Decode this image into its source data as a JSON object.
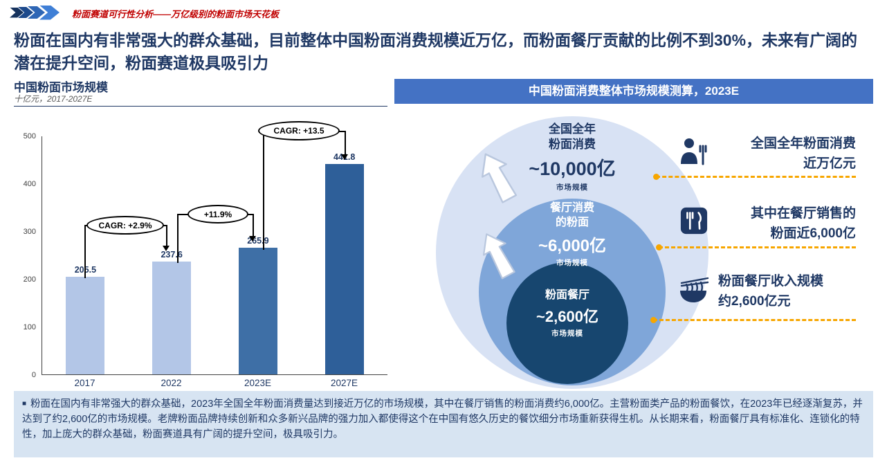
{
  "header": {
    "kicker": "粉面赛道可行性分析——万亿级别的粉面市场天花板"
  },
  "headline": {
    "line1": "粉面在国内有非常强大的群众基础，目前整体中国粉面消费规模近万亿，而粉面餐厅贡献的比例不到",
    "line2": "30%，未来有广阔的潜在提升空间，粉面赛道极具吸引力"
  },
  "left_chart": {
    "title": "中国粉面市场规模",
    "subtitle": "十亿元，2017-2027E"
  },
  "chart_data": {
    "type": "bar",
    "title": "中国粉面市场规模",
    "unit": "十亿元",
    "x_range_label": "2017-2027E",
    "categories": [
      "2017",
      "2022",
      "2023E",
      "2027E"
    ],
    "values": [
      205.5,
      237.6,
      265.9,
      441.8
    ],
    "bar_colors": [
      "#B3C6E7",
      "#B3C6E7",
      "#3E6FA6",
      "#2E5F99"
    ],
    "ylim": [
      0,
      500
    ],
    "yticks": [
      0,
      100,
      200,
      300,
      400,
      500
    ],
    "annotations": [
      {
        "label": "CAGR: +2.9%",
        "from": "2017",
        "to": "2022"
      },
      {
        "label": "+11.9%",
        "from": "2022",
        "to": "2023E"
      },
      {
        "label": "CAGR: +13.5",
        "from": "2023E",
        "to": "2027E"
      }
    ]
  },
  "panel": {
    "title": "中国粉面消费整体市场规模测算，2023E",
    "circles": [
      {
        "line1": "全国全年",
        "line2": "粉面消费",
        "value": "~10,000亿",
        "caption": "市场规模"
      },
      {
        "line1": "餐厅消费",
        "line2": "的粉面",
        "value": "~6,000亿",
        "caption": "市场规模"
      },
      {
        "line1": "粉面餐厅",
        "value": "~2,600亿",
        "caption": "市场规模"
      }
    ],
    "legend": [
      {
        "icon": "diner-person-icon",
        "line1": "全国全年粉面消费",
        "line2": "近万亿元"
      },
      {
        "icon": "fork-knife-icon",
        "line1": "其中在餐厅销售的",
        "line2": "粉面近6,000亿"
      },
      {
        "icon": "noodle-bowl-icon",
        "line1": "粉面餐厅收入规模",
        "line2": "约2,600亿元"
      }
    ]
  },
  "footnote": "粉面在国内有非常强大的群众基础，2023年全国全年粉面消费量达到接近万亿的市场规模，其中在餐厅销售的粉面消费约6,000亿。主营粉面类产品的粉面餐饮，在2023年已经逐渐复苏，并达到了约2,600亿的市场规模。老牌粉面品牌持续创新和众多新兴品牌的强力加入都使得这个在中国有悠久历史的餐饮细分市场重新获得生机。从长期来看，粉面餐厅具有标准化、连锁化的特性，加上庞大的群众基础，粉面赛道具有广阔的提升空间，极具吸引力。",
  "colors": {
    "navy": "#1F3864",
    "kicker_red": "#C00000",
    "panel_header_blue": "#4472C4",
    "circle_outer": "#D8E2F4",
    "circle_middle": "#7FA6D9",
    "circle_inner": "#17466F",
    "dash_orange": "#F7A600",
    "footer_bg": "#D7E4F2"
  }
}
